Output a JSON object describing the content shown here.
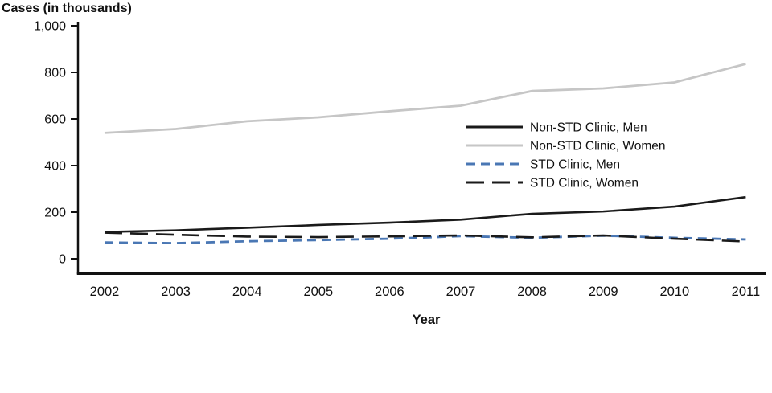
{
  "chart_data": {
    "type": "line",
    "title": "Cases (in thousands)",
    "xlabel": "Year",
    "ylabel": "",
    "x": [
      "2002",
      "2003",
      "2004",
      "2005",
      "2006",
      "2007",
      "2008",
      "2009",
      "2010",
      "2011"
    ],
    "ylim": [
      0,
      1000
    ],
    "yticks": [
      0,
      200,
      400,
      600,
      800,
      1000
    ],
    "ytick_labels": [
      "0",
      "200",
      "400",
      "600",
      "800",
      "1,000"
    ],
    "grid": false,
    "legend_position": "inside-right",
    "colors": {
      "black": "#1a1a1a",
      "gray": "#c6c6c6",
      "blue": "#4a77b4",
      "axis": "#111111"
    },
    "series": [
      {
        "name": "Non-STD Clinic, Men",
        "key": "non-std-clinic-men",
        "color": "#1a1a1a",
        "dash": "",
        "width": 2.6,
        "values": [
          115,
          122,
          133,
          145,
          155,
          168,
          193,
          203,
          224,
          265
        ]
      },
      {
        "name": "Non-STD Clinic, Women",
        "key": "non-std-clinic-women",
        "color": "#c6c6c6",
        "dash": "",
        "width": 2.8,
        "values": [
          540,
          557,
          590,
          607,
          633,
          657,
          720,
          731,
          757,
          836
        ]
      },
      {
        "name": "STD Clinic, Men",
        "key": "std-clinic-men",
        "color": "#4a77b4",
        "dash": "11,7",
        "width": 2.8,
        "values": [
          70,
          67,
          75,
          80,
          86,
          97,
          90,
          99,
          90,
          83
        ]
      },
      {
        "name": "STD Clinic, Women",
        "key": "std-clinic-women",
        "color": "#1a1a1a",
        "dash": "22,10",
        "width": 2.6,
        "values": [
          112,
          103,
          95,
          93,
          96,
          100,
          92,
          100,
          86,
          74
        ]
      }
    ]
  }
}
